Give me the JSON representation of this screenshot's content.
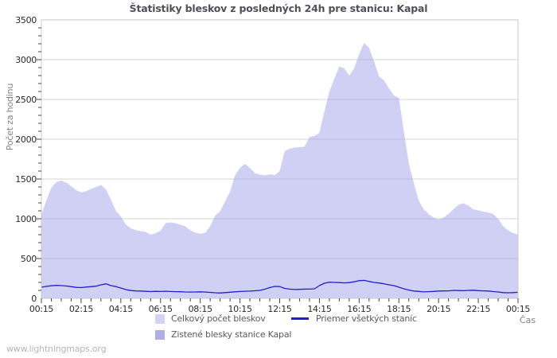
{
  "title": "Štatistiky bleskov z posledných 24h pre stanicu: Kapal",
  "footer": {
    "text": "www.lightningmaps.org"
  },
  "colors": {
    "area_total_fill": "rgba(169,170,237,0.55)",
    "legend_total_swatch": "#d2d3f6",
    "legend_station_swatch": "#aeafe9",
    "average_line": "#1f1fd0",
    "grid": "#d4d4d4",
    "plot_border": "#c9c9c9",
    "tick_text": "#2a2a2a"
  },
  "chart_data": {
    "type": "area",
    "title": "Štatistiky bleskov z posledných 24h pre stanicu: Kapal",
    "xlabel": "Čas",
    "ylabel": "Počet za hodinu",
    "ylim": [
      0,
      3500
    ],
    "y_tick_step": 500,
    "y_minor_step": 100,
    "y_ticks": [
      0,
      500,
      1000,
      1500,
      2000,
      2500,
      3000,
      3500
    ],
    "x_tick_labels": [
      "00:15",
      "02:15",
      "04:15",
      "06:15",
      "08:15",
      "10:15",
      "12:15",
      "14:15",
      "16:15",
      "18:15",
      "20:15",
      "22:15",
      "00:15"
    ],
    "x_minor_interval_minutes": 30,
    "sample_interval_minutes": 15,
    "x_start_label": "00:15",
    "x_range_hours": 24,
    "grid": "horizontal-only",
    "legend_position": "bottom",
    "series": [
      {
        "name": "Celkový počet bleskov",
        "type": "area",
        "values": [
          1050,
          1230,
          1390,
          1460,
          1480,
          1455,
          1410,
          1360,
          1330,
          1345,
          1375,
          1400,
          1425,
          1370,
          1240,
          1100,
          1030,
          930,
          880,
          855,
          845,
          835,
          800,
          820,
          850,
          945,
          955,
          945,
          925,
          905,
          855,
          825,
          810,
          825,
          905,
          1040,
          1095,
          1220,
          1340,
          1545,
          1640,
          1690,
          1640,
          1575,
          1555,
          1545,
          1560,
          1550,
          1600,
          1850,
          1880,
          1895,
          1900,
          1905,
          2030,
          2040,
          2080,
          2350,
          2600,
          2760,
          2915,
          2890,
          2800,
          2890,
          3070,
          3210,
          3150,
          2980,
          2790,
          2740,
          2640,
          2550,
          2520,
          2100,
          1700,
          1450,
          1230,
          1120,
          1060,
          1015,
          990,
          1015,
          1060,
          1120,
          1175,
          1195,
          1165,
          1120,
          1105,
          1090,
          1080,
          1060,
          1000,
          905,
          855,
          820,
          800
        ]
      },
      {
        "name": "Zistené blesky stanice Kapal",
        "type": "area",
        "values": [
          0,
          0,
          0,
          0,
          0,
          0,
          0,
          0,
          0,
          0,
          0,
          0,
          0,
          0,
          0,
          0,
          0,
          0,
          0,
          0,
          0,
          0,
          0,
          0,
          0,
          0,
          0,
          0,
          0,
          0,
          0,
          0,
          0,
          0,
          0,
          0,
          0,
          0,
          0,
          0,
          0,
          0,
          0,
          0,
          0,
          0,
          0,
          0,
          0,
          0,
          0,
          0,
          0,
          0,
          0,
          0,
          0,
          0,
          0,
          0,
          0,
          0,
          0,
          0,
          0,
          0,
          0,
          0,
          0,
          0,
          0,
          0,
          0,
          0,
          0,
          0,
          0,
          0,
          0,
          0,
          0,
          0,
          0,
          0,
          0,
          0,
          0,
          0,
          0,
          0,
          0,
          0,
          0,
          0,
          0,
          0,
          0
        ]
      },
      {
        "name": "Priemer všetkých staníc",
        "type": "line",
        "values": [
          140,
          150,
          158,
          163,
          160,
          155,
          147,
          138,
          135,
          142,
          147,
          153,
          170,
          182,
          160,
          148,
          130,
          110,
          98,
          93,
          92,
          88,
          85,
          88,
          86,
          89,
          86,
          84,
          83,
          80,
          79,
          80,
          82,
          79,
          75,
          70,
          67,
          72,
          77,
          82,
          86,
          89,
          91,
          95,
          100,
          115,
          135,
          150,
          148,
          125,
          116,
          111,
          113,
          116,
          116,
          120,
          160,
          190,
          203,
          200,
          198,
          194,
          198,
          208,
          222,
          226,
          212,
          200,
          193,
          183,
          170,
          160,
          140,
          120,
          104,
          92,
          87,
          81,
          84,
          87,
          92,
          93,
          94,
          100,
          98,
          96,
          100,
          102,
          97,
          94,
          92,
          85,
          80,
          72,
          70,
          72,
          76
        ]
      }
    ]
  }
}
